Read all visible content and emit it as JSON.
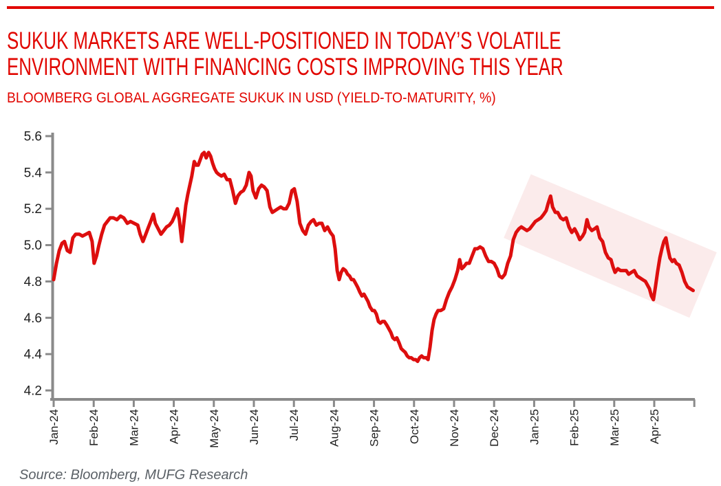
{
  "page": {
    "title_lines": [
      "SUKUK MARKETS ARE WELL-POSITIONED IN TODAY’S VOLATILE",
      "ENVIRONMENT WITH FINANCING COSTS IMPROVING THIS YEAR"
    ],
    "subtitle": "BLOOMBERG GLOBAL AGGREGATE SUKUK IN USD (YIELD-TO-MATURITY, %)",
    "source": "Source: Bloomberg, MUFG Research"
  },
  "colors": {
    "accent_red": "#e10600",
    "line_red": "#dd0e0e",
    "band_pink": "#fbebeb",
    "axis_gray": "#8a8a8a",
    "tick_text": "#1f1f1f",
    "source_gray": "#5a6066"
  },
  "chart_data": {
    "type": "line",
    "title": "BLOOMBERG GLOBAL AGGREGATE SUKUK IN USD (YIELD-TO-MATURITY, %)",
    "xlabel": "",
    "ylabel": "",
    "grid": false,
    "legend": "none",
    "ylim": [
      4.2,
      5.6
    ],
    "y_ticks": [
      5.6,
      5.4,
      5.2,
      5.0,
      4.8,
      4.6,
      4.4,
      4.2
    ],
    "x_tick_labels": [
      "Jan-24",
      "Feb-24",
      "Mar-24",
      "Apr-24",
      "May-24",
      "Jun-24",
      "Jul-24",
      "Aug-24",
      "Sep-24",
      "Oct-24",
      "Nov-24",
      "Dec-24",
      "Jan-25",
      "Feb-25",
      "Mar-25",
      "Apr-25"
    ],
    "x_months_range": [
      0,
      16
    ],
    "highlight_band": {
      "color": "#fbebeb",
      "corners_month_value": [
        [
          11.92,
          5.39
        ],
        [
          16.56,
          4.96
        ],
        [
          15.88,
          4.6
        ],
        [
          11.24,
          5.04
        ]
      ]
    },
    "series": [
      {
        "name": "Bloomberg Global Aggregate Sukuk in USD (yield-to-maturity, %)",
        "points": [
          [
            0,
            4.81
          ],
          [
            0.07,
            4.9
          ],
          [
            0.14,
            4.97
          ],
          [
            0.21,
            5.01
          ],
          [
            0.27,
            5.02
          ],
          [
            0.34,
            4.97
          ],
          [
            0.41,
            4.96
          ],
          [
            0.48,
            5.04
          ],
          [
            0.55,
            5.06
          ],
          [
            0.64,
            5.06
          ],
          [
            0.72,
            5.05
          ],
          [
            0.81,
            5.06
          ],
          [
            0.89,
            5.07
          ],
          [
            0.96,
            5.02
          ],
          [
            1.01,
            4.9
          ],
          [
            1.07,
            4.94
          ],
          [
            1.13,
            5.0
          ],
          [
            1.2,
            5.06
          ],
          [
            1.27,
            5.11
          ],
          [
            1.34,
            5.13
          ],
          [
            1.41,
            5.15
          ],
          [
            1.49,
            5.15
          ],
          [
            1.58,
            5.14
          ],
          [
            1.67,
            5.16
          ],
          [
            1.75,
            5.15
          ],
          [
            1.84,
            5.12
          ],
          [
            1.92,
            5.13
          ],
          [
            2.01,
            5.12
          ],
          [
            2.1,
            5.11
          ],
          [
            2.16,
            5.06
          ],
          [
            2.23,
            5.02
          ],
          [
            2.3,
            5.06
          ],
          [
            2.37,
            5.1
          ],
          [
            2.44,
            5.14
          ],
          [
            2.49,
            5.17
          ],
          [
            2.54,
            5.12
          ],
          [
            2.61,
            5.09
          ],
          [
            2.68,
            5.06
          ],
          [
            2.75,
            5.08
          ],
          [
            2.82,
            5.1
          ],
          [
            2.89,
            5.11
          ],
          [
            2.96,
            5.13
          ],
          [
            3.02,
            5.16
          ],
          [
            3.09,
            5.2
          ],
          [
            3.14,
            5.14
          ],
          [
            3.2,
            5.02
          ],
          [
            3.25,
            5.12
          ],
          [
            3.3,
            5.22
          ],
          [
            3.35,
            5.28
          ],
          [
            3.4,
            5.33
          ],
          [
            3.45,
            5.38
          ],
          [
            3.51,
            5.46
          ],
          [
            3.56,
            5.44
          ],
          [
            3.61,
            5.44
          ],
          [
            3.66,
            5.47
          ],
          [
            3.71,
            5.5
          ],
          [
            3.76,
            5.51
          ],
          [
            3.81,
            5.48
          ],
          [
            3.87,
            5.51
          ],
          [
            3.92,
            5.49
          ],
          [
            3.97,
            5.45
          ],
          [
            4.02,
            5.42
          ],
          [
            4.07,
            5.4
          ],
          [
            4.12,
            5.39
          ],
          [
            4.19,
            5.38
          ],
          [
            4.26,
            5.39
          ],
          [
            4.33,
            5.36
          ],
          [
            4.4,
            5.36
          ],
          [
            4.47,
            5.3
          ],
          [
            4.54,
            5.23
          ],
          [
            4.6,
            5.27
          ],
          [
            4.67,
            5.29
          ],
          [
            4.74,
            5.3
          ],
          [
            4.81,
            5.33
          ],
          [
            4.88,
            5.4
          ],
          [
            4.93,
            5.38
          ],
          [
            4.98,
            5.3
          ],
          [
            5.05,
            5.26
          ],
          [
            5.12,
            5.31
          ],
          [
            5.19,
            5.33
          ],
          [
            5.26,
            5.32
          ],
          [
            5.33,
            5.3
          ],
          [
            5.4,
            5.21
          ],
          [
            5.46,
            5.18
          ],
          [
            5.53,
            5.19
          ],
          [
            5.6,
            5.2
          ],
          [
            5.67,
            5.21
          ],
          [
            5.74,
            5.2
          ],
          [
            5.81,
            5.2
          ],
          [
            5.88,
            5.23
          ],
          [
            5.95,
            5.3
          ],
          [
            6.01,
            5.31
          ],
          [
            6.08,
            5.24
          ],
          [
            6.15,
            5.12
          ],
          [
            6.22,
            5.08
          ],
          [
            6.29,
            5.06
          ],
          [
            6.36,
            5.11
          ],
          [
            6.43,
            5.13
          ],
          [
            6.49,
            5.14
          ],
          [
            6.56,
            5.11
          ],
          [
            6.63,
            5.12
          ],
          [
            6.7,
            5.12
          ],
          [
            6.77,
            5.08
          ],
          [
            6.84,
            5.1
          ],
          [
            6.91,
            5.07
          ],
          [
            6.98,
            5.05
          ],
          [
            7.03,
            4.98
          ],
          [
            7.08,
            4.86
          ],
          [
            7.13,
            4.81
          ],
          [
            7.18,
            4.85
          ],
          [
            7.23,
            4.87
          ],
          [
            7.29,
            4.86
          ],
          [
            7.34,
            4.84
          ],
          [
            7.39,
            4.83
          ],
          [
            7.44,
            4.81
          ],
          [
            7.49,
            4.81
          ],
          [
            7.54,
            4.79
          ],
          [
            7.59,
            4.77
          ],
          [
            7.65,
            4.74
          ],
          [
            7.7,
            4.72
          ],
          [
            7.75,
            4.73
          ],
          [
            7.8,
            4.71
          ],
          [
            7.85,
            4.69
          ],
          [
            7.9,
            4.66
          ],
          [
            7.96,
            4.64
          ],
          [
            8.01,
            4.64
          ],
          [
            8.06,
            4.62
          ],
          [
            8.11,
            4.58
          ],
          [
            8.16,
            4.57
          ],
          [
            8.21,
            4.58
          ],
          [
            8.26,
            4.58
          ],
          [
            8.32,
            4.56
          ],
          [
            8.37,
            4.54
          ],
          [
            8.42,
            4.52
          ],
          [
            8.47,
            4.49
          ],
          [
            8.52,
            4.48
          ],
          [
            8.57,
            4.49
          ],
          [
            8.63,
            4.46
          ],
          [
            8.68,
            4.43
          ],
          [
            8.73,
            4.42
          ],
          [
            8.78,
            4.41
          ],
          [
            8.83,
            4.39
          ],
          [
            8.88,
            4.38
          ],
          [
            8.93,
            4.38
          ],
          [
            8.99,
            4.37
          ],
          [
            9.04,
            4.37
          ],
          [
            9.09,
            4.36
          ],
          [
            9.14,
            4.38
          ],
          [
            9.19,
            4.39
          ],
          [
            9.24,
            4.38
          ],
          [
            9.3,
            4.38
          ],
          [
            9.35,
            4.37
          ],
          [
            9.4,
            4.44
          ],
          [
            9.45,
            4.53
          ],
          [
            9.5,
            4.59
          ],
          [
            9.55,
            4.62
          ],
          [
            9.6,
            4.64
          ],
          [
            9.67,
            4.64
          ],
          [
            9.74,
            4.65
          ],
          [
            9.81,
            4.7
          ],
          [
            9.88,
            4.74
          ],
          [
            9.95,
            4.77
          ],
          [
            10.02,
            4.81
          ],
          [
            10.09,
            4.86
          ],
          [
            10.14,
            4.92
          ],
          [
            10.19,
            4.87
          ],
          [
            10.24,
            4.88
          ],
          [
            10.31,
            4.9
          ],
          [
            10.38,
            4.9
          ],
          [
            10.45,
            4.94
          ],
          [
            10.52,
            4.98
          ],
          [
            10.58,
            4.98
          ],
          [
            10.65,
            4.99
          ],
          [
            10.72,
            4.98
          ],
          [
            10.79,
            4.94
          ],
          [
            10.86,
            4.91
          ],
          [
            10.93,
            4.91
          ],
          [
            11,
            4.9
          ],
          [
            11.07,
            4.87
          ],
          [
            11.13,
            4.83
          ],
          [
            11.2,
            4.82
          ],
          [
            11.27,
            4.84
          ],
          [
            11.34,
            4.9
          ],
          [
            11.41,
            4.94
          ],
          [
            11.48,
            5.03
          ],
          [
            11.55,
            5.07
          ],
          [
            11.62,
            5.09
          ],
          [
            11.68,
            5.1
          ],
          [
            11.75,
            5.09
          ],
          [
            11.82,
            5.08
          ],
          [
            11.89,
            5.09
          ],
          [
            11.96,
            5.11
          ],
          [
            12.03,
            5.13
          ],
          [
            12.1,
            5.14
          ],
          [
            12.17,
            5.15
          ],
          [
            12.24,
            5.17
          ],
          [
            12.3,
            5.19
          ],
          [
            12.35,
            5.23
          ],
          [
            12.41,
            5.27
          ],
          [
            12.46,
            5.21
          ],
          [
            12.53,
            5.18
          ],
          [
            12.59,
            5.18
          ],
          [
            12.66,
            5.15
          ],
          [
            12.73,
            5.14
          ],
          [
            12.8,
            5.15
          ],
          [
            12.87,
            5.1
          ],
          [
            12.94,
            5.07
          ],
          [
            13.01,
            5.09
          ],
          [
            13.08,
            5.06
          ],
          [
            13.14,
            5.03
          ],
          [
            13.21,
            5.05
          ],
          [
            13.26,
            5.07
          ],
          [
            13.32,
            5.14
          ],
          [
            13.37,
            5.1
          ],
          [
            13.44,
            5.08
          ],
          [
            13.51,
            5.09
          ],
          [
            13.57,
            5.1
          ],
          [
            13.64,
            5.04
          ],
          [
            13.71,
            5.02
          ],
          [
            13.78,
            4.96
          ],
          [
            13.85,
            4.93
          ],
          [
            13.92,
            4.92
          ],
          [
            13.97,
            4.88
          ],
          [
            14.02,
            4.85
          ],
          [
            14.09,
            4.87
          ],
          [
            14.16,
            4.86
          ],
          [
            14.23,
            4.86
          ],
          [
            14.3,
            4.86
          ],
          [
            14.36,
            4.84
          ],
          [
            14.43,
            4.85
          ],
          [
            14.5,
            4.86
          ],
          [
            14.57,
            4.83
          ],
          [
            14.64,
            4.82
          ],
          [
            14.71,
            4.81
          ],
          [
            14.78,
            4.8
          ],
          [
            14.83,
            4.78
          ],
          [
            14.88,
            4.76
          ],
          [
            14.93,
            4.72
          ],
          [
            14.98,
            4.7
          ],
          [
            15.03,
            4.77
          ],
          [
            15.08,
            4.85
          ],
          [
            15.14,
            4.93
          ],
          [
            15.19,
            4.98
          ],
          [
            15.24,
            5.02
          ],
          [
            15.29,
            5.04
          ],
          [
            15.34,
            4.98
          ],
          [
            15.39,
            4.93
          ],
          [
            15.45,
            4.91
          ],
          [
            15.5,
            4.92
          ],
          [
            15.55,
            4.9
          ],
          [
            15.62,
            4.89
          ],
          [
            15.69,
            4.85
          ],
          [
            15.76,
            4.8
          ],
          [
            15.83,
            4.77
          ],
          [
            15.9,
            4.76
          ],
          [
            15.97,
            4.75
          ]
        ]
      }
    ]
  }
}
